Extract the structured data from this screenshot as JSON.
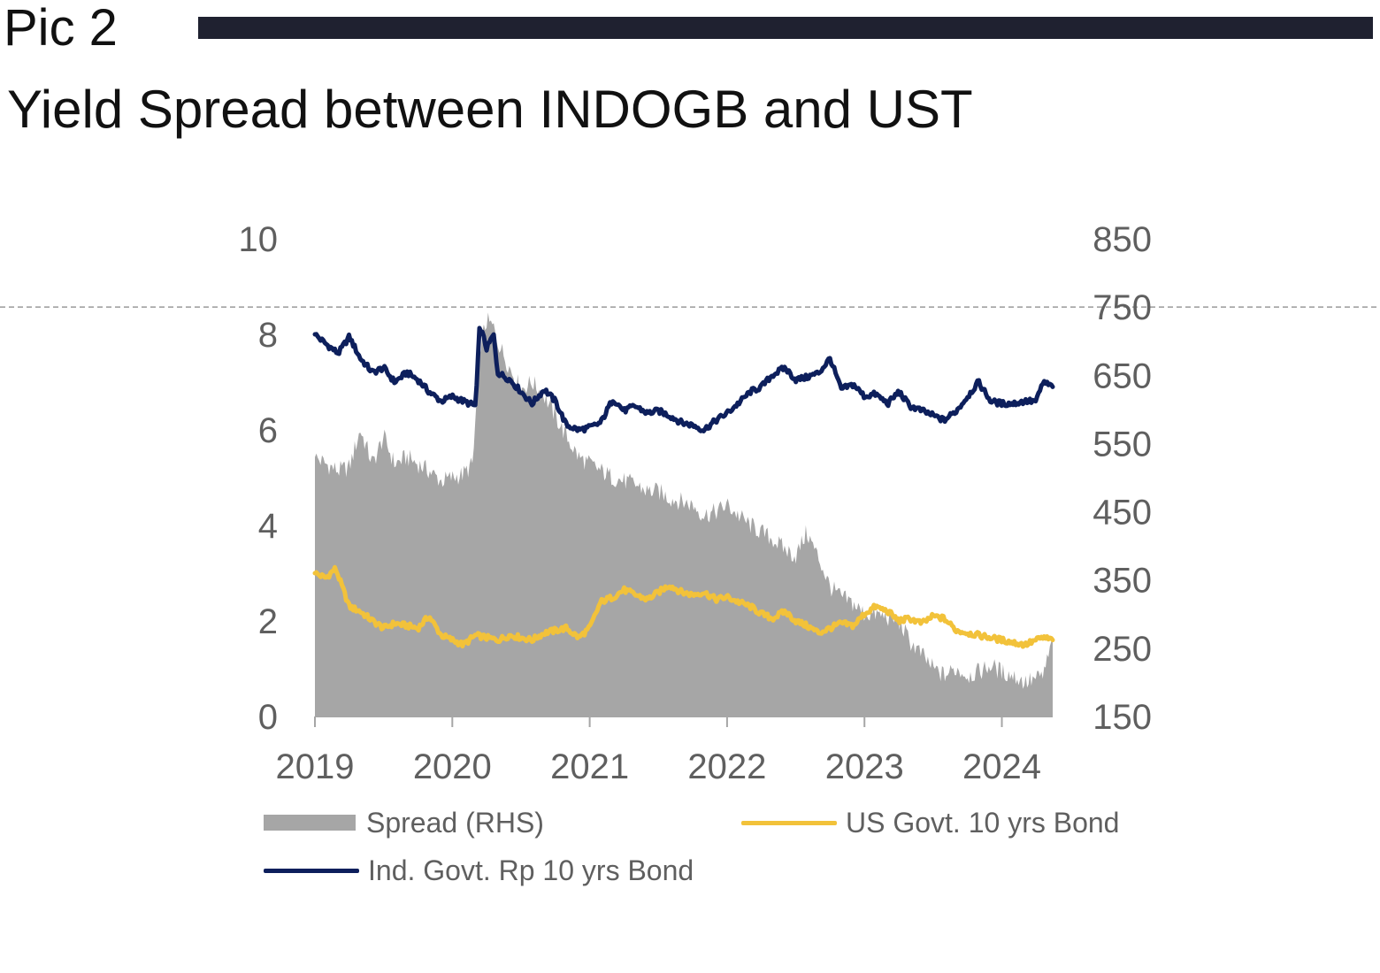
{
  "header": {
    "pic_label": "Pic 2",
    "title": "Yield Spread between INDOGB and UST"
  },
  "colors": {
    "spread_fill": "#a6a6a6",
    "us_line": "#f2c23a",
    "ind_line": "#0d1f5c",
    "header_bar": "#1f2130",
    "reference_line": "#9a9a9a"
  },
  "chart_data": {
    "type": "line",
    "title": "Yield Spread between INDOGB and UST",
    "x_ticks": [
      "2019",
      "2020",
      "2021",
      "2022",
      "2023",
      "2024"
    ],
    "x_range": [
      2019.0,
      2024.37
    ],
    "y_left": {
      "ticks": [
        "0",
        "2",
        "4",
        "6",
        "8",
        "10"
      ],
      "range": [
        0,
        10
      ]
    },
    "y_right": {
      "ticks": [
        "150",
        "250",
        "350",
        "450",
        "550",
        "650",
        "750",
        "850"
      ],
      "range": [
        150,
        850
      ]
    },
    "grid": false,
    "reference_line_right_value": 750,
    "legend": {
      "placement": "bottom",
      "items": [
        "Spread (RHS)",
        "US Govt. 10 yrs Bond",
        "Ind. Govt. Rp 10 yrs Bond"
      ]
    },
    "series": [
      {
        "name": "Ind. Govt. Rp 10 yrs Bond",
        "axis": "left",
        "kind": "line",
        "x": [
          2019.0,
          2019.08,
          2019.17,
          2019.25,
          2019.33,
          2019.42,
          2019.5,
          2019.58,
          2019.67,
          2019.75,
          2019.83,
          2019.92,
          2020.0,
          2020.08,
          2020.17,
          2020.2,
          2020.25,
          2020.3,
          2020.33,
          2020.42,
          2020.5,
          2020.58,
          2020.67,
          2020.75,
          2020.83,
          2020.92,
          2021.0,
          2021.08,
          2021.17,
          2021.25,
          2021.33,
          2021.42,
          2021.5,
          2021.58,
          2021.67,
          2021.75,
          2021.83,
          2021.92,
          2022.0,
          2022.08,
          2022.17,
          2022.25,
          2022.33,
          2022.42,
          2022.5,
          2022.58,
          2022.67,
          2022.75,
          2022.83,
          2022.92,
          2023.0,
          2023.08,
          2023.17,
          2023.25,
          2023.33,
          2023.42,
          2023.5,
          2023.58,
          2023.67,
          2023.75,
          2023.83,
          2023.92,
          2024.0,
          2024.08,
          2024.17,
          2024.25,
          2024.3,
          2024.37
        ],
        "y": [
          8.0,
          7.8,
          7.6,
          7.95,
          7.5,
          7.2,
          7.3,
          7.0,
          7.2,
          7.05,
          6.8,
          6.6,
          6.7,
          6.6,
          6.5,
          8.2,
          7.7,
          8.0,
          7.2,
          7.05,
          6.8,
          6.55,
          6.85,
          6.6,
          6.1,
          6.0,
          6.05,
          6.15,
          6.65,
          6.4,
          6.5,
          6.35,
          6.4,
          6.3,
          6.15,
          6.1,
          6.0,
          6.2,
          6.35,
          6.55,
          6.8,
          6.9,
          7.15,
          7.3,
          7.05,
          7.1,
          7.2,
          7.5,
          6.85,
          6.95,
          6.7,
          6.75,
          6.55,
          6.8,
          6.5,
          6.4,
          6.3,
          6.2,
          6.4,
          6.7,
          7.0,
          6.6,
          6.55,
          6.55,
          6.6,
          6.6,
          7.0,
          6.9
        ]
      },
      {
        "name": "US Govt. 10 yrs Bond",
        "axis": "left",
        "kind": "line",
        "x": [
          2019.0,
          2019.08,
          2019.15,
          2019.2,
          2019.25,
          2019.33,
          2019.42,
          2019.5,
          2019.58,
          2019.67,
          2019.75,
          2019.83,
          2019.92,
          2020.0,
          2020.08,
          2020.17,
          2020.25,
          2020.33,
          2020.42,
          2020.5,
          2020.58,
          2020.67,
          2020.75,
          2020.83,
          2020.92,
          2021.0,
          2021.08,
          2021.17,
          2021.25,
          2021.33,
          2021.42,
          2021.5,
          2021.58,
          2021.67,
          2021.75,
          2021.83,
          2021.92,
          2022.0,
          2022.08,
          2022.17,
          2022.25,
          2022.33,
          2022.42,
          2022.5,
          2022.58,
          2022.67,
          2022.75,
          2022.83,
          2022.92,
          2023.0,
          2023.08,
          2023.17,
          2023.25,
          2023.33,
          2023.42,
          2023.5,
          2023.58,
          2023.67,
          2023.75,
          2023.83,
          2023.92,
          2024.0,
          2024.08,
          2024.17,
          2024.25,
          2024.3,
          2024.37
        ],
        "y": [
          3.0,
          2.9,
          3.1,
          2.7,
          2.3,
          2.2,
          2.0,
          1.85,
          1.95,
          1.9,
          1.85,
          2.1,
          1.7,
          1.6,
          1.5,
          1.7,
          1.65,
          1.6,
          1.7,
          1.65,
          1.6,
          1.75,
          1.8,
          1.85,
          1.65,
          1.85,
          2.4,
          2.5,
          2.65,
          2.55,
          2.45,
          2.6,
          2.75,
          2.6,
          2.55,
          2.6,
          2.45,
          2.5,
          2.4,
          2.3,
          2.15,
          2.05,
          2.2,
          2.0,
          1.9,
          1.75,
          1.85,
          1.95,
          1.9,
          2.15,
          2.3,
          2.2,
          2.0,
          2.05,
          1.95,
          2.1,
          2.05,
          1.8,
          1.75,
          1.7,
          1.65,
          1.6,
          1.55,
          1.5,
          1.6,
          1.65,
          1.6
        ]
      },
      {
        "name": "Spread (RHS)",
        "axis": "right",
        "kind": "area",
        "x": [
          2019.0,
          2019.08,
          2019.17,
          2019.25,
          2019.33,
          2019.42,
          2019.5,
          2019.58,
          2019.67,
          2019.75,
          2019.83,
          2019.92,
          2020.0,
          2020.08,
          2020.15,
          2020.2,
          2020.25,
          2020.3,
          2020.33,
          2020.42,
          2020.5,
          2020.58,
          2020.67,
          2020.75,
          2020.83,
          2020.92,
          2021.0,
          2021.08,
          2021.17,
          2021.25,
          2021.33,
          2021.42,
          2021.5,
          2021.58,
          2021.67,
          2021.75,
          2021.83,
          2021.92,
          2022.0,
          2022.08,
          2022.17,
          2022.25,
          2022.33,
          2022.42,
          2022.5,
          2022.58,
          2022.67,
          2022.75,
          2022.83,
          2022.92,
          2023.0,
          2023.08,
          2023.17,
          2023.25,
          2023.33,
          2023.42,
          2023.5,
          2023.58,
          2023.67,
          2023.75,
          2023.83,
          2023.92,
          2024.0,
          2024.08,
          2024.17,
          2024.25,
          2024.3,
          2024.37
        ],
        "y": [
          530,
          520,
          510,
          515,
          570,
          520,
          560,
          520,
          530,
          520,
          510,
          495,
          500,
          505,
          520,
          690,
          730,
          720,
          700,
          660,
          630,
          640,
          620,
          590,
          560,
          530,
          520,
          510,
          500,
          495,
          490,
          480,
          480,
          470,
          465,
          460,
          445,
          450,
          460,
          445,
          430,
          420,
          410,
          395,
          385,
          420,
          380,
          340,
          325,
          315,
          300,
          300,
          295,
          290,
          260,
          240,
          220,
          210,
          220,
          210,
          215,
          225,
          215,
          210,
          200,
          205,
          210,
          260
        ]
      }
    ]
  }
}
